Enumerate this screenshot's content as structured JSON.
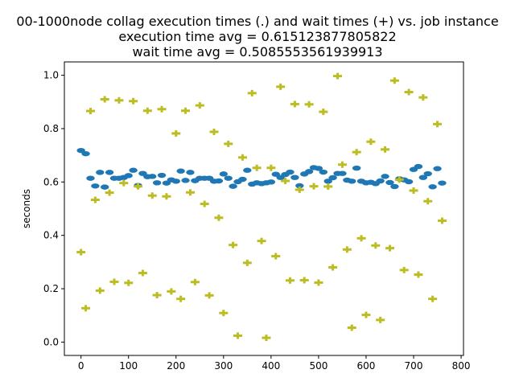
{
  "chart_data": {
    "type": "scatter",
    "title_lines": [
      "00-1000node collag execution times (.) and wait times (+) vs. job instance",
      "execution time avg = 0.615123877805822",
      "wait time avg = 0.5085553561939913"
    ],
    "xlabel": "",
    "ylabel": "seconds",
    "xlim": [
      -35,
      805
    ],
    "ylim": [
      -0.05,
      1.05
    ],
    "xticks": [
      0,
      100,
      200,
      300,
      400,
      500,
      600,
      700,
      800
    ],
    "yticks": [
      0.0,
      0.2,
      0.4,
      0.6,
      0.8,
      1.0
    ],
    "grid": false,
    "colors": {
      "execution": "#1f77b4",
      "wait": "#bcbd22"
    },
    "series": [
      {
        "marker": "dot",
        "x": [
          0,
          10,
          20,
          30,
          40,
          50,
          60,
          70,
          80,
          90,
          100,
          110,
          120,
          130,
          140,
          150,
          160,
          170,
          180,
          190,
          200,
          210,
          220,
          230,
          240,
          250,
          260,
          270,
          280,
          290,
          300,
          310,
          320,
          330,
          340,
          350,
          360,
          370,
          380,
          390,
          400,
          410,
          420,
          430,
          440,
          450,
          460,
          470,
          480,
          490,
          500,
          510,
          520,
          530,
          540,
          550,
          560,
          570,
          580,
          590,
          600,
          610,
          620,
          630,
          640,
          650,
          660,
          670,
          680,
          690,
          700,
          710,
          720,
          730,
          740,
          750,
          760
        ],
        "y": [
          0.718,
          0.706,
          0.614,
          0.585,
          0.636,
          0.581,
          0.636,
          0.614,
          0.614,
          0.617,
          0.624,
          0.644,
          0.587,
          0.632,
          0.62,
          0.621,
          0.597,
          0.625,
          0.596,
          0.608,
          0.603,
          0.641,
          0.606,
          0.636,
          0.605,
          0.614,
          0.614,
          0.614,
          0.603,
          0.604,
          0.63,
          0.614,
          0.584,
          0.601,
          0.61,
          0.644,
          0.592,
          0.597,
          0.594,
          0.597,
          0.6,
          0.629,
          0.617,
          0.628,
          0.637,
          0.617,
          0.586,
          0.63,
          0.639,
          0.654,
          0.651,
          0.637,
          0.603,
          0.616,
          0.632,
          0.632,
          0.607,
          0.603,
          0.652,
          0.603,
          0.597,
          0.599,
          0.594,
          0.604,
          0.621,
          0.598,
          0.583,
          0.612,
          0.608,
          0.601,
          0.647,
          0.658,
          0.617,
          0.631,
          0.582,
          0.65,
          0.596
        ]
      },
      {
        "marker": "plus",
        "x": [
          0,
          10,
          20,
          30,
          40,
          50,
          60,
          70,
          80,
          90,
          100,
          110,
          120,
          130,
          140,
          150,
          160,
          170,
          180,
          190,
          200,
          210,
          220,
          230,
          240,
          250,
          260,
          270,
          280,
          290,
          300,
          310,
          320,
          330,
          340,
          350,
          360,
          370,
          380,
          390,
          400,
          410,
          420,
          430,
          440,
          450,
          460,
          470,
          480,
          490,
          500,
          510,
          520,
          530,
          540,
          550,
          560,
          570,
          580,
          590,
          600,
          610,
          620,
          630,
          640,
          650,
          660,
          670,
          680,
          690,
          700,
          710,
          720,
          730,
          740,
          750,
          760
        ],
        "y": [
          0.337,
          0.127,
          0.866,
          0.533,
          0.193,
          0.91,
          0.56,
          0.226,
          0.906,
          0.596,
          0.222,
          0.903,
          0.584,
          0.259,
          0.867,
          0.549,
          0.176,
          0.873,
          0.546,
          0.19,
          0.782,
          0.162,
          0.867,
          0.561,
          0.225,
          0.887,
          0.518,
          0.175,
          0.788,
          0.466,
          0.109,
          0.743,
          0.364,
          0.024,
          0.692,
          0.297,
          0.933,
          0.653,
          0.379,
          0.016,
          0.653,
          0.322,
          0.957,
          0.604,
          0.231,
          0.892,
          0.571,
          0.232,
          0.891,
          0.584,
          0.223,
          0.863,
          0.583,
          0.28,
          0.997,
          0.665,
          0.347,
          0.054,
          0.712,
          0.389,
          0.102,
          0.751,
          0.362,
          0.083,
          0.722,
          0.352,
          0.98,
          0.609,
          0.27,
          0.937,
          0.568,
          0.253,
          0.917,
          0.528,
          0.162,
          0.817,
          0.455
        ]
      }
    ]
  }
}
